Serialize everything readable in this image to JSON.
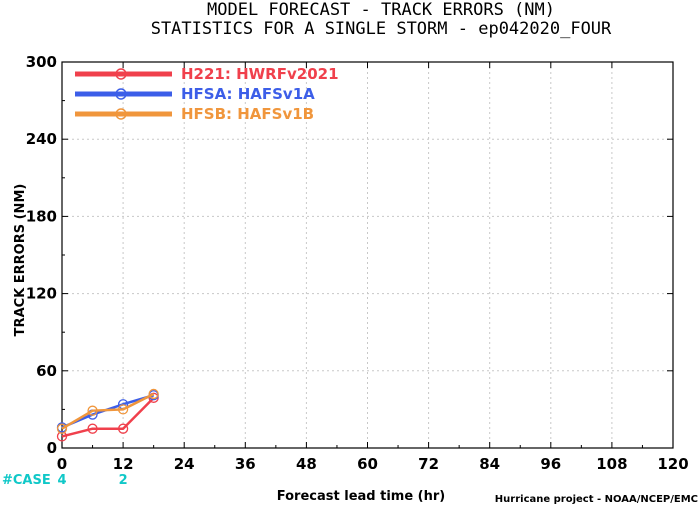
{
  "chart_data": {
    "type": "line",
    "title": "MODEL FORECAST - TRACK ERRORS (NM)",
    "subtitle": "STATISTICS FOR A SINGLE STORM - ep042020_FOUR",
    "xlabel": "Forecast lead time (hr)",
    "ylabel": "TRACK ERRORS (NM)",
    "xlim": [
      0,
      120
    ],
    "ylim": [
      0,
      300
    ],
    "xticks": [
      "0",
      "12",
      "24",
      "36",
      "48",
      "60",
      "72",
      "84",
      "96",
      "108",
      "120"
    ],
    "yticks": [
      "0",
      "60",
      "120",
      "180",
      "240",
      "300"
    ],
    "grid": true,
    "legend_position": "top-left",
    "series": [
      {
        "name": "H221: HWRFv2021",
        "color": "#f0404c",
        "x": [
          0,
          6,
          12,
          18
        ],
        "values": [
          9,
          15,
          15,
          39
        ]
      },
      {
        "name": "HFSA: HAFSv1A",
        "color": "#3c5ee8",
        "x": [
          0,
          6,
          12,
          18
        ],
        "values": [
          16,
          26,
          34,
          41
        ]
      },
      {
        "name": "HFSB: HAFSv1B",
        "color": "#f0963c",
        "x": [
          0,
          6,
          12,
          18
        ],
        "values": [
          15,
          29,
          30,
          42
        ]
      }
    ],
    "case_counts": {
      "label": "#CASE",
      "items": [
        {
          "x": 0,
          "text": "4"
        },
        {
          "x": 12,
          "text": "2"
        }
      ]
    },
    "credit": "Hurricane project - NOAA/NCEP/EMC"
  }
}
